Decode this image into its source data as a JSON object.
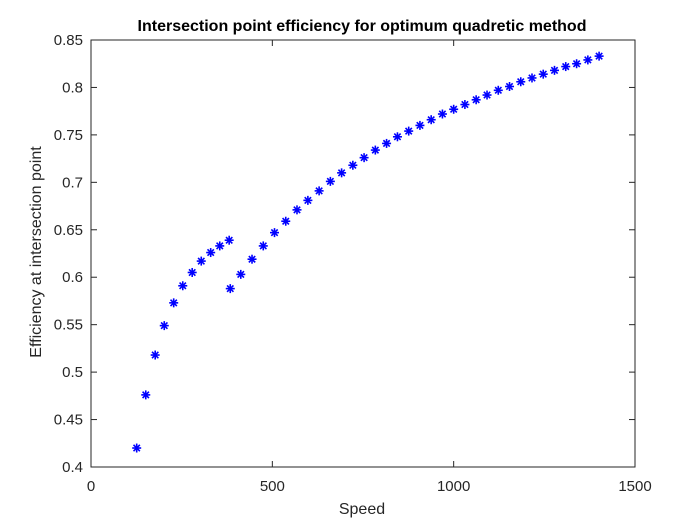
{
  "chart_data": {
    "type": "scatter",
    "title": "Intersection point efficiency for optimum quadretic method",
    "xlabel": "Speed",
    "ylabel": "Efficiency at intersection point",
    "xlim": [
      0,
      1500
    ],
    "ylim": [
      0.4,
      0.85
    ],
    "xticks": [
      0,
      500,
      1000,
      1500
    ],
    "xtick_labels": [
      "0",
      "500",
      "1000",
      "1500"
    ],
    "yticks": [
      0.4,
      0.45,
      0.5,
      0.55,
      0.6,
      0.65,
      0.7,
      0.75,
      0.8,
      0.85
    ],
    "ytick_labels": [
      "0.4",
      "0.45",
      "0.5",
      "0.55",
      "0.6",
      "0.65",
      "0.7",
      "0.75",
      "0.8",
      "0.85"
    ],
    "grid": false,
    "box": true,
    "marker": "asterisk",
    "marker_color": "#0000ff",
    "x": [
      126,
      151,
      177,
      202,
      228,
      253,
      279,
      304,
      330,
      355,
      381,
      384,
      413,
      444,
      475,
      506,
      537,
      568,
      598,
      629,
      660,
      691,
      722,
      753,
      784,
      815,
      845,
      876,
      907,
      938,
      969,
      1000,
      1031,
      1062,
      1092,
      1123,
      1154,
      1185,
      1216,
      1247,
      1278,
      1309,
      1339,
      1370,
      1401
    ],
    "y": [
      0.42,
      0.476,
      0.518,
      0.549,
      0.573,
      0.591,
      0.605,
      0.617,
      0.626,
      0.633,
      0.639,
      0.588,
      0.603,
      0.619,
      0.633,
      0.647,
      0.659,
      0.671,
      0.681,
      0.691,
      0.701,
      0.71,
      0.718,
      0.726,
      0.734,
      0.741,
      0.748,
      0.754,
      0.76,
      0.766,
      0.772,
      0.777,
      0.782,
      0.787,
      0.792,
      0.797,
      0.801,
      0.806,
      0.81,
      0.814,
      0.818,
      0.822,
      0.825,
      0.829,
      0.833
    ]
  }
}
